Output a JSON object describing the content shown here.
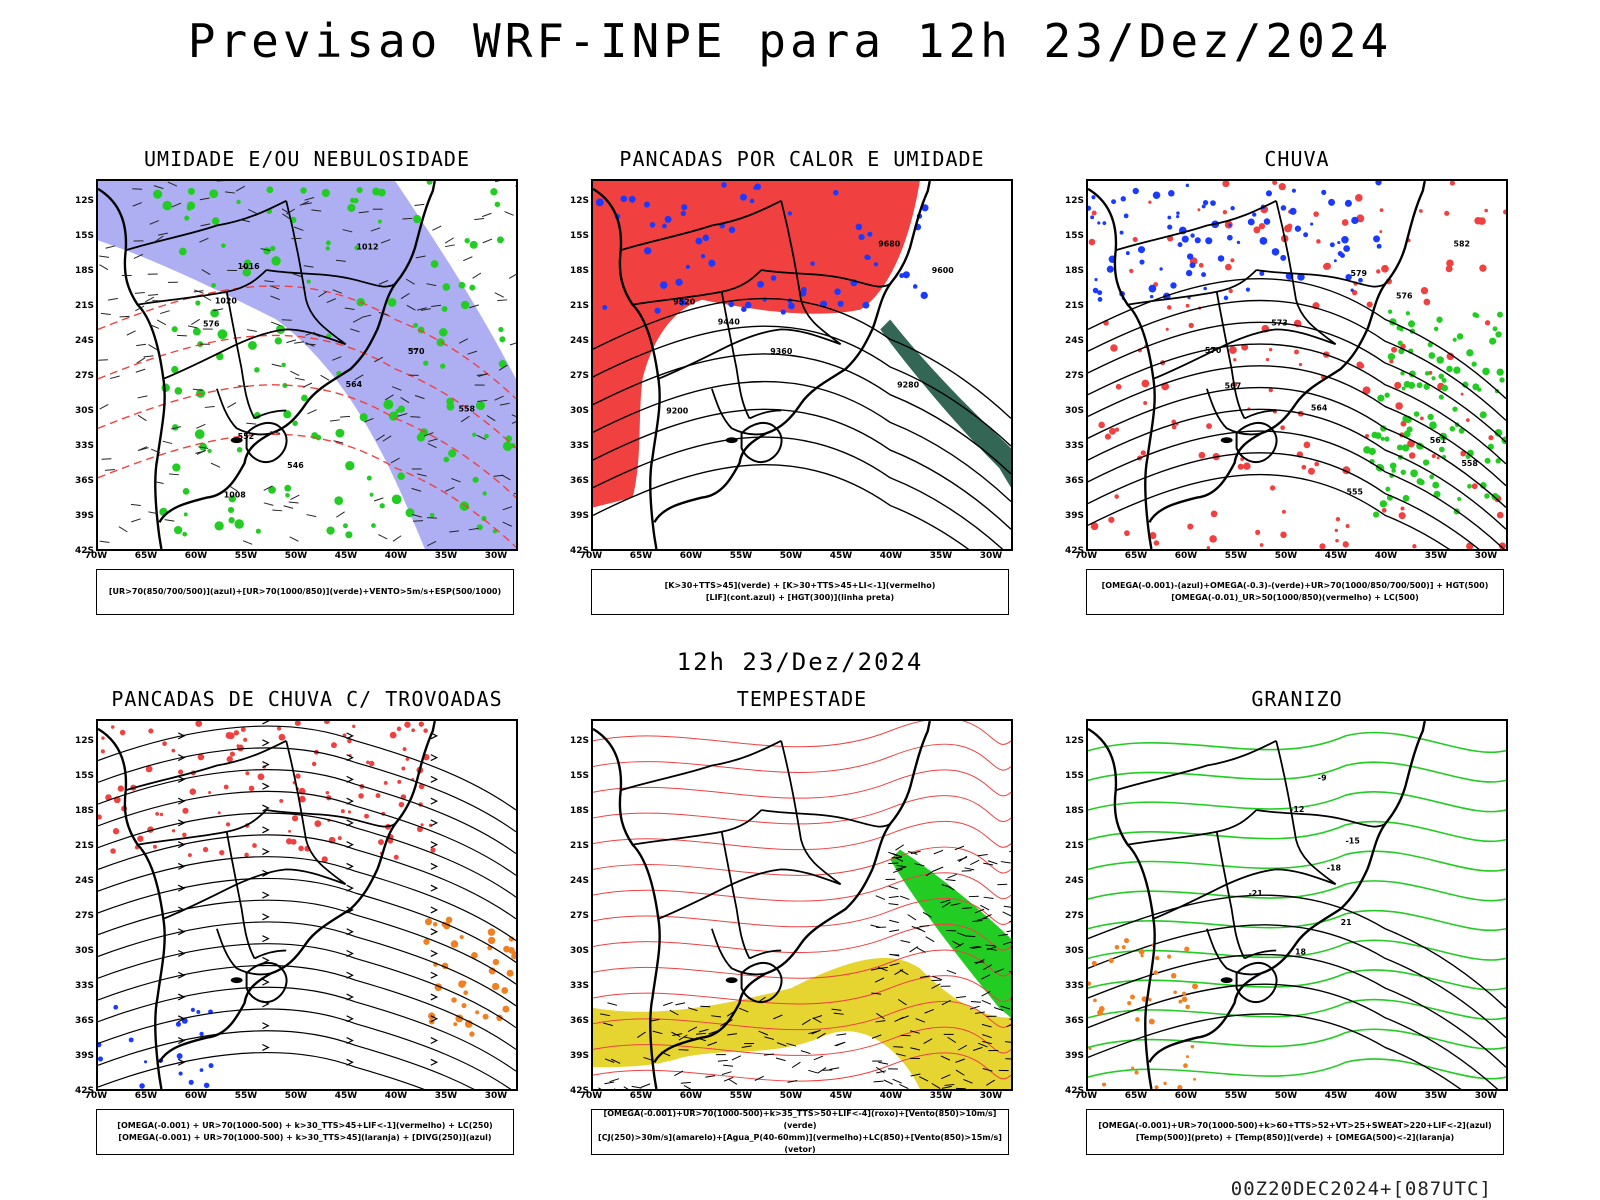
{
  "title": "Previsao WRF-INPE  para 12h 23/Dez/2024",
  "subtitle": "12h 23/Dez/2024",
  "footer": "00Z20DEC2024+[087UTC]",
  "lat_labels": [
    "12S",
    "15S",
    "18S",
    "21S",
    "24S",
    "27S",
    "30S",
    "33S",
    "36S",
    "39S",
    "42S"
  ],
  "lon_labels": [
    "70W",
    "65W",
    "60W",
    "55W",
    "50W",
    "45W",
    "40W",
    "35W",
    "30W"
  ],
  "colors": {
    "blue_shade": "#9a9af0",
    "green": "#22cc22",
    "red": "#f04040",
    "dark_teal": "#336655",
    "orange": "#f08020",
    "yellow": "#e6d530",
    "blue": "#1a3aff",
    "purple": "#aa33cc"
  },
  "panels": [
    {
      "id": "umidade",
      "title": "UMIDADE E/OU NEBULOSIDADE",
      "legend": [
        "[UR>70(850/700/500)](azul)+[UR>70(1000/850)](verde)+VENTO>5m/s+ESP(500/1000)"
      ],
      "contour_labels": [
        "1012",
        "1016",
        "1020",
        "576",
        "570",
        "564",
        "558",
        "552",
        "546",
        "1008"
      ]
    },
    {
      "id": "pancadas-calor",
      "title": "PANCADAS POR CALOR E UMIDADE",
      "legend": [
        "[K>30+TTS>45](verde) + [K>30+TTS>45+LI<-1](vermelho)",
        "[LIF](cont.azul) + [HGT(300)](linha preta)"
      ],
      "contour_labels": [
        "9680",
        "9600",
        "9520",
        "9440",
        "9360",
        "9280",
        "9200"
      ]
    },
    {
      "id": "chuva",
      "title": "CHUVA",
      "legend": [
        "[OMEGA(-0.001)-(azul)+OMEGA(-0.3)-(verde)+UR>70(1000/850/700/500)] + HGT(500)",
        "[OMEGA(-0.01)_UR>50(1000/850)(vermelho) + LC(500)"
      ],
      "contour_labels": [
        "582",
        "579",
        "576",
        "573",
        "570",
        "567",
        "564",
        "561",
        "558",
        "555"
      ]
    },
    {
      "id": "pancadas-trovoadas",
      "title": "PANCADAS DE CHUVA C/ TROVOADAS",
      "legend": [
        "[OMEGA(-0.001) + UR>70(1000-500) + k>30_TTS>45+LIF<-1](vermelho) + LC(250)",
        "[OMEGA(-0.001) + UR>70(1000-500) + k>30_TTS>45](laranja) + [DIVG(250)](azul)"
      ],
      "contour_labels": []
    },
    {
      "id": "tempestade",
      "title": "TEMPESTADE",
      "legend": [
        "[OMEGA(-0.001)+UR>70(1000-500)+k>35_TTS>50+LIF<-4](roxo)+[Vento(850)>10m/s](verde)",
        "[CJ(250)>30m/s](amarelo)+[Agua_P(40-60mm)](vermelho)+LC(850)+[Vento(850)>15m/s](vetor)"
      ],
      "contour_labels": []
    },
    {
      "id": "granizo",
      "title": "GRANIZO",
      "legend": [
        "[OMEGA(-0.001)+UR>70(1000-500)+k>60+TTS>52+VT>25+SWEAT>220+LIF<-2](azul)",
        "[Temp(500)](preto) + [Temp(850)](verde) + [OMEGA(500)<-2](laranja)"
      ],
      "contour_labels": [
        "-9",
        "-12",
        "-15",
        "-18",
        "-21",
        "21",
        "18"
      ]
    }
  ]
}
